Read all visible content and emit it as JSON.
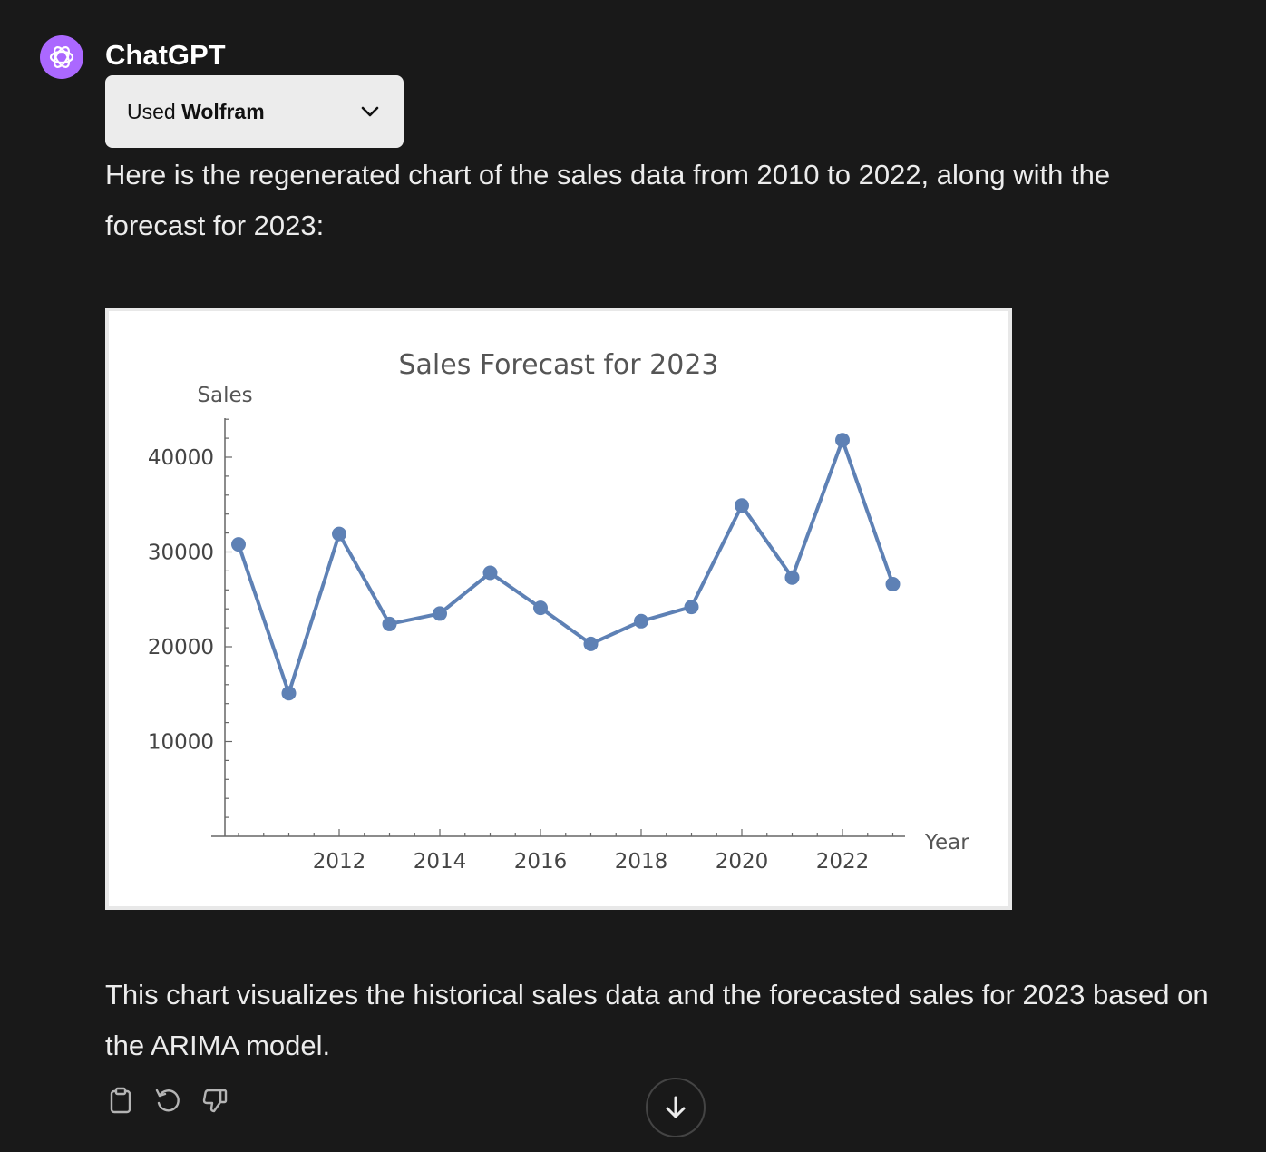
{
  "message": {
    "author": "ChatGPT",
    "tool_used": {
      "prefix": "Used",
      "name": "Wolfram"
    },
    "intro_text": "Here is the regenerated chart of the sales data from 2010 to 2022, along with the forecast for 2023:",
    "outro_text": "This chart visualizes the historical sales data and the forecasted sales for 2023 based on the ARIMA model."
  },
  "icons": {
    "avatar": "openai-logo-icon",
    "tool_toggle": "chevron-down-icon",
    "copy": "clipboard-icon",
    "regenerate": "regenerate-icon",
    "dislike": "thumbs-down-icon",
    "scroll_down": "arrow-down-icon"
  },
  "colors": {
    "background": "#191919",
    "avatar": "#ab68ff",
    "tool_pill": "#ececec",
    "series": "#5e81b5"
  },
  "chart_data": {
    "type": "line",
    "title": "Sales Forecast for 2023",
    "ylabel": "Sales",
    "xlabel": "Year",
    "x": [
      2010,
      2011,
      2012,
      2013,
      2014,
      2015,
      2016,
      2017,
      2018,
      2019,
      2020,
      2021,
      2022,
      2023
    ],
    "values": [
      30800,
      15100,
      31900,
      22400,
      23500,
      27800,
      24100,
      20300,
      22700,
      24200,
      34900,
      27300,
      41800,
      26600
    ],
    "xlim": [
      2009.75,
      2023.5
    ],
    "ylim": [
      0,
      44000
    ],
    "xticks": [
      2012,
      2014,
      2016,
      2018,
      2020,
      2022
    ],
    "yticks": [
      10000,
      20000,
      30000,
      40000
    ],
    "ytick_labels": [
      "10000",
      "20000",
      "30000",
      "40000"
    ],
    "grid": false,
    "legend": "none"
  }
}
